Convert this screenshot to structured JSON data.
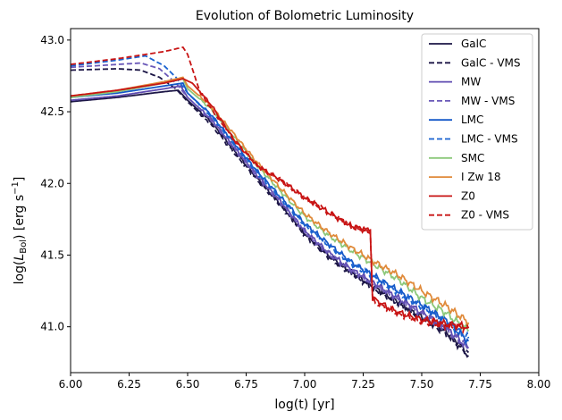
{
  "chart_data": {
    "type": "line",
    "title": "Evolution of Bolometric Luminosity",
    "xlabel": "log(t) [yr]",
    "ylabel_parts": {
      "prefix": "log(",
      "var": "L",
      "sub": "Bol",
      "mid": ") [erg s",
      "sup": "−1",
      "suffix": "]"
    },
    "xlim": [
      6.0,
      8.0
    ],
    "ylim": [
      40.68,
      43.08
    ],
    "xticks": [
      6.0,
      6.25,
      6.5,
      6.75,
      7.0,
      7.25,
      7.5,
      7.75,
      8.0
    ],
    "xtick_labels": [
      "6.00",
      "6.25",
      "6.50",
      "6.75",
      "7.00",
      "7.25",
      "7.50",
      "7.75",
      "8.00"
    ],
    "yticks": [
      41.0,
      41.5,
      42.0,
      42.5,
      43.0
    ],
    "ytick_labels": [
      "41.0",
      "41.5",
      "42.0",
      "42.5",
      "43.0"
    ],
    "grid": false,
    "legend_position": "top-right",
    "series": [
      {
        "name": "GalC",
        "color": "#1c1646",
        "dash": "solid",
        "points": [
          [
            6.0,
            42.57
          ],
          [
            6.2,
            42.6
          ],
          [
            6.4,
            42.64
          ],
          [
            6.46,
            42.65
          ],
          [
            6.5,
            42.58
          ],
          [
            6.6,
            42.43
          ],
          [
            6.7,
            42.23
          ],
          [
            6.8,
            42.03
          ],
          [
            6.9,
            41.85
          ],
          [
            7.0,
            41.65
          ],
          [
            7.1,
            41.5
          ],
          [
            7.2,
            41.38
          ],
          [
            7.3,
            41.27
          ],
          [
            7.4,
            41.17
          ],
          [
            7.5,
            41.07
          ],
          [
            7.6,
            40.97
          ],
          [
            7.7,
            40.8
          ]
        ]
      },
      {
        "name": "GalC - VMS",
        "color": "#1c1646",
        "dash": "dashed",
        "points": [
          [
            6.0,
            42.79
          ],
          [
            6.2,
            42.8
          ],
          [
            6.3,
            42.79
          ],
          [
            6.38,
            42.74
          ],
          [
            6.45,
            42.66
          ],
          [
            6.5,
            42.57
          ],
          [
            6.6,
            42.41
          ],
          [
            6.7,
            42.21
          ],
          [
            6.8,
            42.02
          ],
          [
            6.9,
            41.84
          ],
          [
            7.0,
            41.64
          ],
          [
            7.1,
            41.49
          ],
          [
            7.2,
            41.37
          ],
          [
            7.3,
            41.26
          ],
          [
            7.4,
            41.16
          ],
          [
            7.5,
            41.06
          ],
          [
            7.6,
            40.96
          ],
          [
            7.7,
            40.82
          ]
        ]
      },
      {
        "name": "MW",
        "color": "#5f4bb0",
        "dash": "solid",
        "points": [
          [
            6.0,
            42.58
          ],
          [
            6.2,
            42.61
          ],
          [
            6.4,
            42.66
          ],
          [
            6.47,
            42.68
          ],
          [
            6.5,
            42.6
          ],
          [
            6.6,
            42.45
          ],
          [
            6.7,
            42.25
          ],
          [
            6.8,
            42.05
          ],
          [
            6.9,
            41.87
          ],
          [
            7.0,
            41.67
          ],
          [
            7.1,
            41.52
          ],
          [
            7.2,
            41.4
          ],
          [
            7.3,
            41.3
          ],
          [
            7.4,
            41.2
          ],
          [
            7.5,
            41.1
          ],
          [
            7.6,
            41.0
          ],
          [
            7.7,
            40.85
          ]
        ]
      },
      {
        "name": "MW - VMS",
        "color": "#6a58b8",
        "dash": "dashed",
        "points": [
          [
            6.0,
            42.81
          ],
          [
            6.2,
            42.83
          ],
          [
            6.3,
            42.84
          ],
          [
            6.38,
            42.8
          ],
          [
            6.45,
            42.7
          ],
          [
            6.5,
            42.6
          ],
          [
            6.6,
            42.44
          ],
          [
            6.7,
            42.24
          ],
          [
            6.8,
            42.04
          ],
          [
            6.9,
            41.86
          ],
          [
            7.0,
            41.66
          ],
          [
            7.1,
            41.51
          ],
          [
            7.2,
            41.39
          ],
          [
            7.3,
            41.29
          ],
          [
            7.4,
            41.19
          ],
          [
            7.5,
            41.09
          ],
          [
            7.6,
            40.99
          ],
          [
            7.7,
            40.86
          ]
        ]
      },
      {
        "name": "LMC",
        "color": "#1458c8",
        "dash": "solid",
        "points": [
          [
            6.0,
            42.6
          ],
          [
            6.2,
            42.63
          ],
          [
            6.4,
            42.68
          ],
          [
            6.48,
            42.7
          ],
          [
            6.5,
            42.63
          ],
          [
            6.6,
            42.48
          ],
          [
            6.7,
            42.28
          ],
          [
            6.8,
            42.08
          ],
          [
            6.9,
            41.9
          ],
          [
            7.0,
            41.72
          ],
          [
            7.1,
            41.58
          ],
          [
            7.2,
            41.45
          ],
          [
            7.3,
            41.35
          ],
          [
            7.4,
            41.25
          ],
          [
            7.5,
            41.15
          ],
          [
            7.6,
            41.05
          ],
          [
            7.7,
            40.9
          ]
        ]
      },
      {
        "name": "LMC - VMS",
        "color": "#1a62d0",
        "dash": "dashed",
        "points": [
          [
            6.0,
            42.82
          ],
          [
            6.2,
            42.86
          ],
          [
            6.32,
            42.89
          ],
          [
            6.4,
            42.82
          ],
          [
            6.45,
            42.74
          ],
          [
            6.5,
            42.63
          ],
          [
            6.6,
            42.47
          ],
          [
            6.7,
            42.27
          ],
          [
            6.8,
            42.07
          ],
          [
            6.9,
            41.89
          ],
          [
            7.0,
            41.71
          ],
          [
            7.1,
            41.57
          ],
          [
            7.2,
            41.44
          ],
          [
            7.3,
            41.34
          ],
          [
            7.4,
            41.24
          ],
          [
            7.5,
            41.14
          ],
          [
            7.6,
            41.04
          ],
          [
            7.7,
            40.92
          ]
        ]
      },
      {
        "name": "SMC",
        "color": "#8cc87a",
        "dash": "solid",
        "points": [
          [
            6.0,
            42.6
          ],
          [
            6.2,
            42.64
          ],
          [
            6.4,
            42.7
          ],
          [
            6.48,
            42.73
          ],
          [
            6.5,
            42.66
          ],
          [
            6.6,
            42.52
          ],
          [
            6.7,
            42.32
          ],
          [
            6.8,
            42.12
          ],
          [
            6.9,
            41.94
          ],
          [
            7.0,
            41.77
          ],
          [
            7.1,
            41.64
          ],
          [
            7.2,
            41.53
          ],
          [
            7.3,
            41.43
          ],
          [
            7.4,
            41.33
          ],
          [
            7.5,
            41.2
          ],
          [
            7.6,
            41.1
          ],
          [
            7.7,
            40.97
          ]
        ]
      },
      {
        "name": "I Zw 18",
        "color": "#e08a3a",
        "dash": "solid",
        "points": [
          [
            6.0,
            42.61
          ],
          [
            6.2,
            42.65
          ],
          [
            6.4,
            42.71
          ],
          [
            6.48,
            42.74
          ],
          [
            6.5,
            42.68
          ],
          [
            6.6,
            42.54
          ],
          [
            6.7,
            42.34
          ],
          [
            6.8,
            42.14
          ],
          [
            6.9,
            41.96
          ],
          [
            7.0,
            41.79
          ],
          [
            7.1,
            41.66
          ],
          [
            7.2,
            41.55
          ],
          [
            7.3,
            41.45
          ],
          [
            7.4,
            41.36
          ],
          [
            7.5,
            41.25
          ],
          [
            7.6,
            41.15
          ],
          [
            7.7,
            41.03
          ]
        ]
      },
      {
        "name": "Z0",
        "color": "#c81414",
        "dash": "solid",
        "points": [
          [
            6.0,
            42.61
          ],
          [
            6.2,
            42.65
          ],
          [
            6.4,
            42.7
          ],
          [
            6.48,
            42.73
          ],
          [
            6.52,
            42.7
          ],
          [
            6.6,
            42.55
          ],
          [
            6.7,
            42.3
          ],
          [
            6.8,
            42.12
          ],
          [
            6.9,
            42.02
          ],
          [
            7.0,
            41.9
          ],
          [
            7.1,
            41.8
          ],
          [
            7.2,
            41.7
          ],
          [
            7.27,
            41.67
          ],
          [
            7.28,
            41.68
          ],
          [
            7.29,
            41.2
          ],
          [
            7.35,
            41.14
          ],
          [
            7.4,
            41.1
          ],
          [
            7.5,
            41.05
          ],
          [
            7.6,
            41.02
          ],
          [
            7.7,
            41.0
          ]
        ]
      },
      {
        "name": "Z0 - VMS",
        "color": "#c81414",
        "dash": "dashed",
        "points": [
          [
            6.0,
            42.83
          ],
          [
            6.2,
            42.87
          ],
          [
            6.4,
            42.92
          ],
          [
            6.48,
            42.95
          ],
          [
            6.5,
            42.9
          ],
          [
            6.55,
            42.65
          ],
          [
            6.6,
            42.52
          ],
          [
            6.7,
            42.3
          ],
          [
            6.8,
            42.12
          ],
          [
            6.9,
            42.02
          ],
          [
            7.0,
            41.9
          ],
          [
            7.1,
            41.8
          ],
          [
            7.2,
            41.7
          ],
          [
            7.27,
            41.67
          ],
          [
            7.28,
            41.68
          ],
          [
            7.29,
            41.18
          ],
          [
            7.35,
            41.13
          ],
          [
            7.4,
            41.09
          ],
          [
            7.5,
            41.04
          ],
          [
            7.6,
            41.01
          ],
          [
            7.7,
            40.99
          ]
        ]
      }
    ]
  }
}
